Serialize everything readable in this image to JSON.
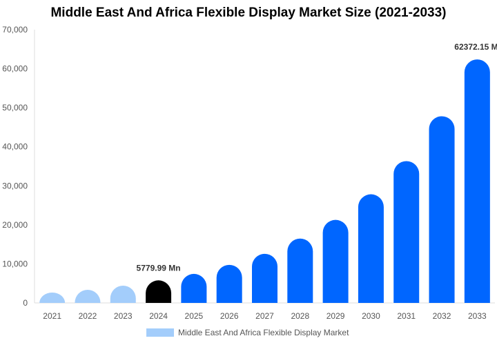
{
  "chart_data": {
    "type": "bar",
    "title": "Middle East And Africa Flexible Display Market Size (2021-2033)",
    "categories": [
      "2021",
      "2022",
      "2023",
      "2024",
      "2025",
      "2026",
      "2027",
      "2028",
      "2029",
      "2030",
      "2031",
      "2032",
      "2033"
    ],
    "series": [
      {
        "name": "Middle East And Africa Flexible Display Market",
        "values": [
          2660,
          3370,
          4430,
          5779.99,
          7440,
          9750,
          12580,
          16480,
          21270,
          27830,
          36330,
          47820,
          62372.15
        ]
      }
    ],
    "ylim": [
      0,
      70000
    ],
    "yticks": [
      "0",
      "10,000",
      "20,000",
      "30,000",
      "40,000",
      "50,000",
      "60,000",
      "70,000"
    ],
    "annotations": [
      {
        "category": "2024",
        "text": "5779.99 Mn"
      },
      {
        "category": "2033",
        "text": "62372.15 M"
      }
    ],
    "colors": {
      "historical": "#a3cdfb",
      "base_year": "#000000",
      "forecast": "#0066ff"
    },
    "legend_position": "bottom",
    "grid": false
  }
}
